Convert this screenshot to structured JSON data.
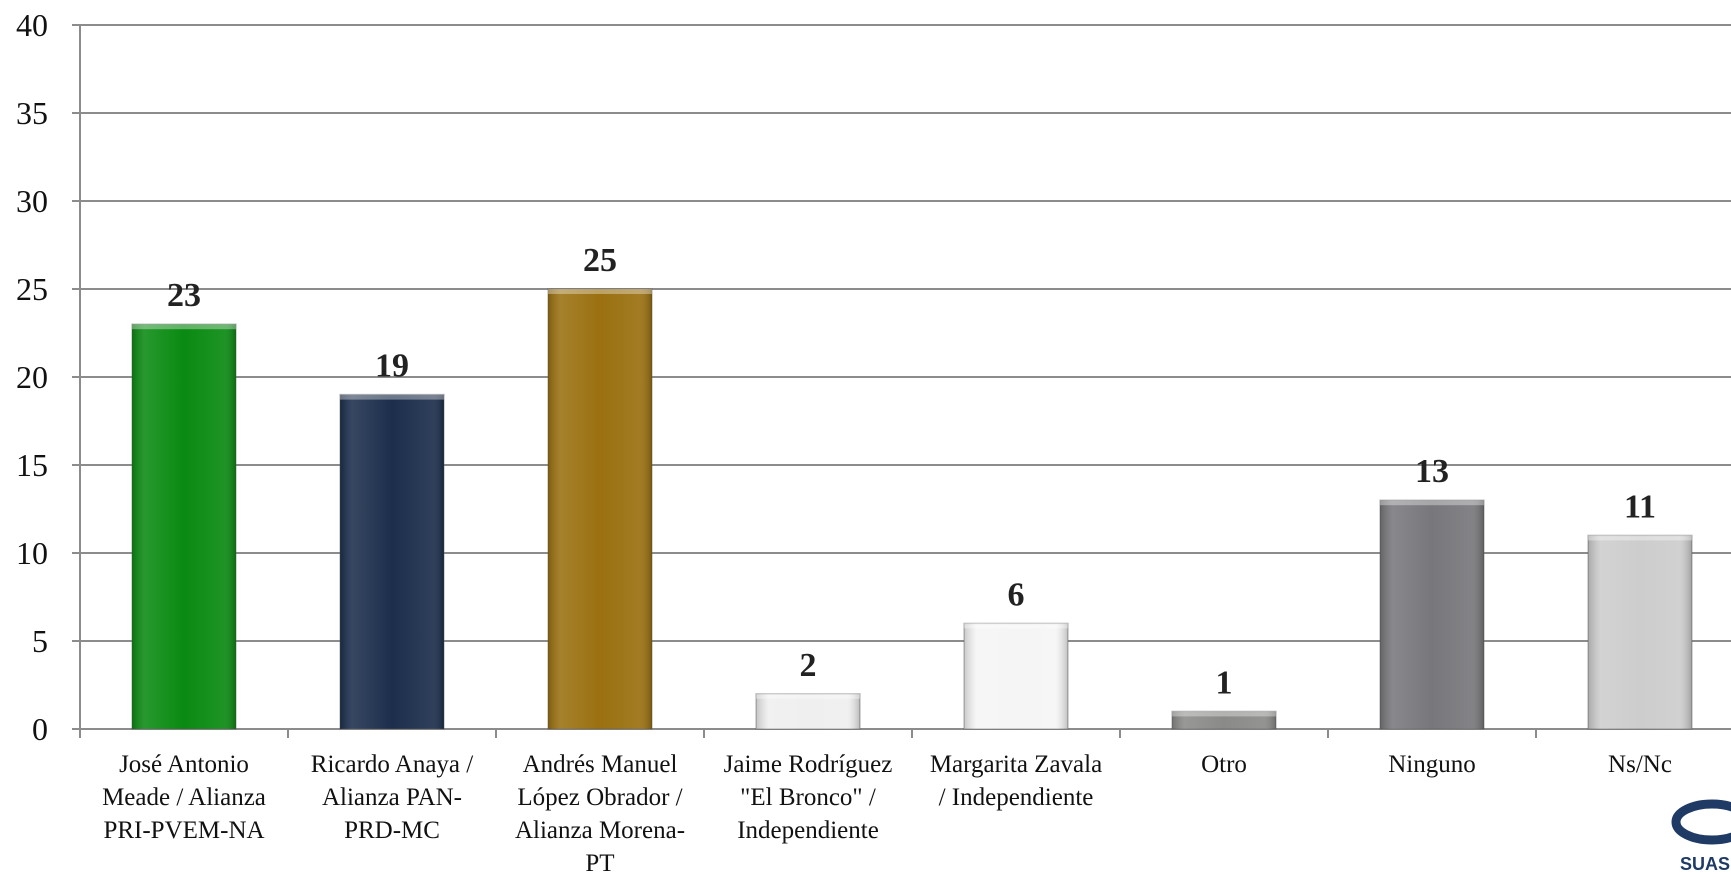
{
  "chart_data": {
    "type": "bar",
    "title": "",
    "xlabel": "",
    "ylabel": "",
    "ylim": [
      0,
      40
    ],
    "yticks": [
      0,
      5,
      10,
      15,
      20,
      25,
      30,
      35,
      40
    ],
    "grid": true,
    "legend": "none",
    "categories": [
      [
        "José Antonio",
        "Meade / Alianza",
        "PRI-PVEM-NA"
      ],
      [
        "Ricardo Anaya /",
        "Alianza PAN-",
        "PRD-MC"
      ],
      [
        "Andrés Manuel",
        "López Obrador /",
        "Alianza Morena-",
        "PT"
      ],
      [
        "Jaime Rodríguez",
        "\"El Bronco\" /",
        "Independiente"
      ],
      [
        "Margarita Zavala",
        "/ Independiente"
      ],
      [
        "Otro"
      ],
      [
        "Ninguno"
      ],
      [
        "Ns/Nc"
      ]
    ],
    "values": [
      23,
      19,
      25,
      2,
      6,
      1,
      13,
      11
    ],
    "colors": [
      "#0a8a12",
      "#1c2e4c",
      "#9a7010",
      "#efefef",
      "#f5f5f5",
      "#8a8a88",
      "#78787c",
      "#cdcdcd"
    ]
  },
  "logo": {
    "text": "SUAS",
    "accent": "#1f3a64"
  }
}
